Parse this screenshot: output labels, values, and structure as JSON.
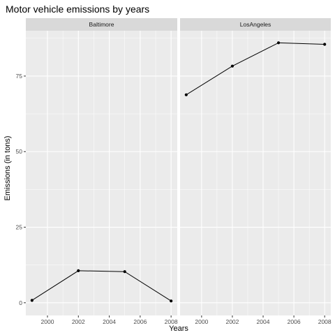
{
  "chart_data": {
    "type": "line",
    "title": "Motor vehicle emissions by years",
    "xlabel": "Years",
    "ylabel": "Emissions (in tons)",
    "xlim": [
      1998.6,
      2008.4
    ],
    "ylim": [
      -4.2,
      90
    ],
    "x_ticks": [
      2000,
      2002,
      2004,
      2006,
      2008
    ],
    "y_ticks": [
      0,
      25,
      50,
      75
    ],
    "grid": true,
    "legend": "none",
    "colors": {
      "panel_background": "#ebebeb",
      "strip_background": "#d9d9d9",
      "grid": "#ffffff",
      "line": "#000000"
    },
    "panels": [
      {
        "name": "Baltimore",
        "x": [
          1999,
          2002,
          2005,
          2008
        ],
        "y": [
          0.8,
          10.6,
          10.3,
          0.6
        ]
      },
      {
        "name": "LosAngeles",
        "x": [
          1999,
          2002,
          2005,
          2008
        ],
        "y": [
          68.8,
          78.3,
          86.0,
          85.5
        ]
      }
    ]
  }
}
